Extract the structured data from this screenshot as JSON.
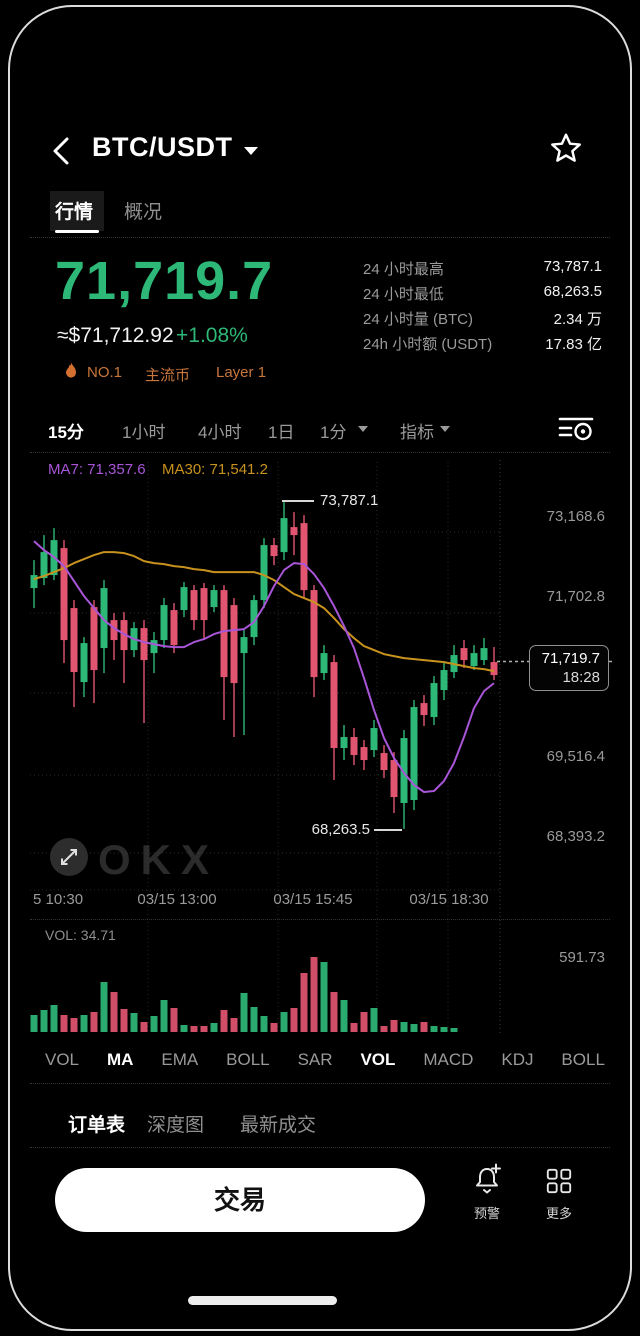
{
  "header": {
    "title": "BTC/USDT"
  },
  "tabs": {
    "quote": "行情",
    "overview": "概况"
  },
  "price": {
    "last": "71,719.7",
    "fiat": "≈$71,712.92",
    "change": "+1.08%"
  },
  "badges": {
    "rank": "NO.1",
    "tag1": "主流币",
    "tag2": "Layer 1"
  },
  "stats": [
    {
      "label": "24 小时最高",
      "value": "73,787.1"
    },
    {
      "label": "24 小时最低",
      "value": "68,263.5"
    },
    {
      "label": "24 小时量 (BTC)",
      "value": "2.34 万"
    },
    {
      "label": "24h 小时额 (USDT)",
      "value": "17.83 亿"
    }
  ],
  "timeframes": {
    "t0": "15分",
    "t1": "1小时",
    "t2": "4小时",
    "t3": "1日",
    "dropdown_interval": "1分",
    "dropdown_indicator": "指标",
    "active": "15分"
  },
  "icons": {
    "back": "chevron-left",
    "favorite": "star-outline",
    "title-caret": "caret-down",
    "chart-settings": "list-circle",
    "expand": "diagonal-arrows",
    "flame": "flame",
    "alert": "bell-plus",
    "more": "grid",
    "watermark": "OKX"
  },
  "chart_data": {
    "type": "candlestick+volume",
    "ma_labels": {
      "ma7": "MA7: 71,357.6",
      "ma30": "MA30: 71,541.2"
    },
    "annotations": {
      "high": "73,787.1",
      "low": "68,263.5"
    },
    "price_tag": {
      "price": "71,719.7",
      "time": "18:28"
    },
    "y_axis_labels": [
      "73,168.6",
      "71,702.8",
      "69,516.4",
      "68,393.2"
    ],
    "x_axis_labels": [
      "5 10:30",
      "03/15 13:00",
      "03/15 15:45",
      "03/15 18:30"
    ],
    "vol_label": "VOL: 34.71",
    "vol_axis_label": "591.73",
    "vol_max": 591.73,
    "ylim": [
      67230,
      74330
    ],
    "colors": {
      "up": "#2eb877",
      "down": "#e25570",
      "ma7": "#a855d8",
      "ma30": "#c8921e"
    },
    "candles": [
      [
        72333.7,
        72806.9,
        71995.7,
        72553.4,
        134.1
      ],
      [
        72502.7,
        73229.4,
        72384.4,
        72942.1,
        173.6
      ],
      [
        72553.4,
        73347.7,
        72468.9,
        73144.9,
        213.0
      ],
      [
        73009.7,
        73144.9,
        71066.2,
        71454.9,
        134.1
      ],
      [
        71995.7,
        72130.9,
        70322.6,
        70914.1,
        110.5
      ],
      [
        70745.1,
        71505.6,
        70491.6,
        71404.2,
        134.1
      ],
      [
        72012.6,
        72130.9,
        70390.2,
        70947.9,
        157.8
      ],
      [
        71319.7,
        72468.9,
        70897.2,
        72333.7,
        394.5
      ],
      [
        71792.9,
        71911.2,
        71116.9,
        71454.9,
        315.6
      ],
      [
        71792.9,
        71928.1,
        70728.2,
        71285.9,
        181.5
      ],
      [
        71285.9,
        71759.1,
        71167.6,
        71657.7,
        149.9
      ],
      [
        71657.7,
        71792.9,
        70052.2,
        71116.9,
        78.9
      ],
      [
        71235.2,
        71590.1,
        70897.2,
        71454.9,
        126.2
      ],
      [
        71454.9,
        72164.7,
        71319.7,
        72046.4,
        252.5
      ],
      [
        71961.9,
        72080.2,
        71235.2,
        71370.4,
        189.4
      ],
      [
        71961.9,
        72435.1,
        71843.6,
        72350.6,
        55.2
      ],
      [
        72299.9,
        72384.4,
        71623.9,
        71792.9,
        47.3
      ],
      [
        72333.7,
        72418.2,
        71454.9,
        71792.9,
        47.3
      ],
      [
        72012.6,
        72384.4,
        71928.1,
        72299.9,
        71.0
      ],
      [
        72299.9,
        72384.4,
        70102.9,
        70829.6,
        173.6
      ],
      [
        72046.4,
        72164.7,
        69815.6,
        70728.2,
        110.5
      ],
      [
        71235.2,
        71623.9,
        69849.4,
        71505.6,
        307.7
      ],
      [
        71505.6,
        72215.4,
        71370.4,
        72130.9,
        197.2
      ],
      [
        72130.9,
        73178.7,
        71995.7,
        73060.4,
        126.2
      ],
      [
        73060.4,
        73178.7,
        72722.4,
        72874.5,
        71.0
      ],
      [
        72942.1,
        73787.1,
        72806.9,
        73516.7,
        157.8
      ],
      [
        73364.6,
        73618.1,
        72891.4,
        73229.4,
        189.4
      ],
      [
        73432.2,
        73567.4,
        72164.7,
        72299.9,
        465.5
      ],
      [
        72299.9,
        72384.4,
        70491.6,
        70829.6,
        591.7
      ],
      [
        70897.2,
        71370.4,
        70778.9,
        71235.2,
        552.3
      ],
      [
        71083.1,
        71201.4,
        69088.9,
        69629.7,
        315.6
      ],
      [
        69629.7,
        70018.4,
        69426.9,
        69815.6,
        252.5
      ],
      [
        69815.6,
        69967.7,
        69342.4,
        69511.4,
        71.0
      ],
      [
        69646.6,
        69764.9,
        69257.9,
        69426.9,
        157.8
      ],
      [
        69595.9,
        70102.9,
        69477.6,
        69967.7,
        189.4
      ],
      [
        69545.2,
        69680.4,
        69122.7,
        69257.9,
        47.3
      ],
      [
        69426.9,
        69562.1,
        68531.2,
        68801.6,
        94.7
      ],
      [
        68700.2,
        69933.9,
        68263.5,
        69798.7,
        78.9
      ],
      [
        68750.9,
        70440.9,
        68581.9,
        70322.6,
        63.1
      ],
      [
        70390.2,
        70525.4,
        70001.5,
        70187.4,
        78.9
      ],
      [
        70153.6,
        70846.5,
        70018.4,
        70728.2,
        47.3
      ],
      [
        70609.9,
        71066.2,
        70440.9,
        70947.9,
        39.4
      ],
      [
        70914.1,
        71370.4,
        70812.7,
        71201.4,
        31.6
      ],
      [
        71319.7,
        71454.9,
        70981.7,
        71116.9,
        0
      ],
      [
        71015.5,
        71370.4,
        70947.9,
        71235.2,
        0
      ],
      [
        71116.9,
        71488.7,
        71032.4,
        71319.7,
        0
      ],
      [
        71083.1,
        71336.6,
        70778.9,
        70863.4,
        0
      ]
    ],
    "ma7": {
      "values": [
        73128.0,
        72975.9,
        72857.6,
        72705.5,
        72452.0,
        72198.5,
        71995.7,
        71792.9,
        71657.7,
        71556.3,
        71471.8,
        71421.1,
        71387.3,
        71353.5,
        71336.6,
        71336.6,
        71421.1,
        71471.8,
        71556.3,
        71607.0,
        71623.9,
        71640.8,
        71759.1,
        72029.5,
        72367.5,
        72637.9,
        72756.2,
        72739.3,
        72570.3,
        72333.7,
        72029.5,
        71691.5,
        71319.7,
        70812.7,
        70271.9,
        69798.7,
        69460.7,
        69207.2,
        69004.4,
        68886.1,
        68903.0,
        69072.0,
        69376.2,
        69815.6,
        70305.7,
        70593.0,
        70728.2
      ]
    },
    "ma30": {
      "values": [
        72485.8,
        72536.5,
        72604.1,
        72671.7,
        72756.2,
        72823.8,
        72891.4,
        72942.1,
        72942.1,
        72925.2,
        72874.5,
        72790.0,
        72756.2,
        72739.3,
        72705.5,
        72688.6,
        72654.8,
        72637.9,
        72604.1,
        72604.1,
        72604.1,
        72604.1,
        72604.1,
        72553.4,
        72468.9,
        72350.6,
        72232.3,
        72164.7,
        72097.1,
        71995.7,
        71826.7,
        71640.8,
        71488.7,
        71353.5,
        71285.9,
        71218.3,
        71184.5,
        71150.7,
        71133.8,
        71116.9,
        71100.0,
        71083.1,
        71049.3,
        71015.5,
        70981.7,
        70964.8,
        70931.0
      ]
    }
  },
  "indicators": {
    "items": [
      "VOL",
      "MA",
      "EMA",
      "BOLL",
      "SAR",
      "VOL",
      "MACD",
      "KDJ",
      "BOLL"
    ],
    "active_indices": [
      1,
      5
    ]
  },
  "bottom_tabs": {
    "t0": "订单表",
    "t1": "深度图",
    "t2": "最新成交",
    "active": "订单表"
  },
  "footer": {
    "trade": "交易",
    "alert": "预警",
    "more": "更多"
  }
}
